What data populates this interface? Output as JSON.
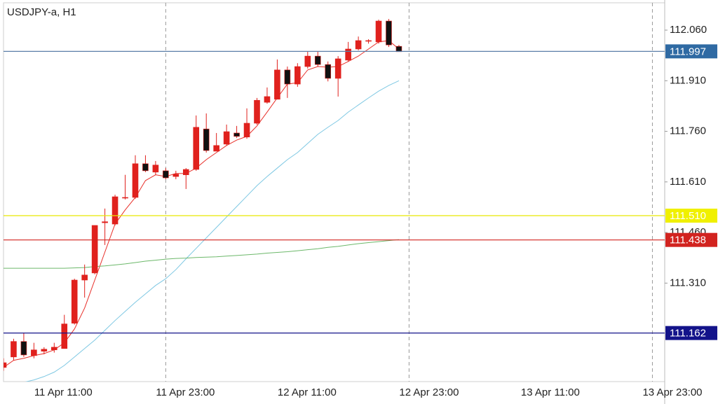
{
  "chart_data": {
    "type": "candlestick",
    "title": "USDJPY-a, H1",
    "ylim": [
      111.018,
      112.141
    ],
    "yticks": [
      {
        "value": 112.06,
        "label": "112.060"
      },
      {
        "value": 111.91,
        "label": "111.910"
      },
      {
        "value": 111.76,
        "label": "111.760"
      },
      {
        "value": 111.61,
        "label": "111.610"
      },
      {
        "value": 111.46,
        "label": "111.460"
      },
      {
        "value": 111.31,
        "label": "111.310"
      }
    ],
    "x_labels": [
      "11 Apr 11:00",
      "11 Apr 23:00",
      "12 Apr 11:00",
      "12 Apr 23:00",
      "13 Apr 11:00",
      "13 Apr 23:00"
    ],
    "up_color": "#e0211d",
    "down_color": "#111111",
    "open": [
      111.06,
      111.091,
      111.137,
      111.095,
      111.108,
      111.112,
      111.116,
      111.191,
      111.319,
      111.34,
      111.489,
      111.485,
      111.562,
      111.564,
      111.664,
      111.639,
      111.643,
      111.626,
      111.631,
      111.647,
      111.767,
      111.701,
      111.722,
      111.755,
      111.743,
      111.784,
      111.846,
      111.855,
      111.942,
      111.9,
      111.952,
      111.983,
      111.958,
      111.917,
      111.971,
      112.004,
      112.027,
      112.025,
      112.087,
      112.012
    ],
    "high": [
      111.087,
      111.145,
      111.162,
      111.133,
      111.12,
      111.133,
      111.216,
      111.323,
      111.365,
      111.481,
      111.531,
      111.572,
      111.631,
      111.689,
      111.689,
      111.672,
      111.651,
      111.643,
      111.651,
      111.807,
      111.813,
      111.755,
      111.78,
      111.776,
      111.828,
      111.859,
      111.89,
      111.973,
      111.952,
      111.962,
      111.996,
      111.996,
      111.967,
      111.983,
      112.025,
      112.041,
      112.033,
      112.091,
      112.093,
      112.016
    ],
    "low": [
      111.05,
      111.081,
      111.091,
      111.087,
      111.099,
      111.104,
      111.116,
      111.187,
      111.267,
      111.336,
      111.423,
      111.481,
      111.558,
      111.56,
      111.639,
      111.63,
      111.618,
      111.618,
      111.589,
      111.643,
      111.697,
      111.701,
      111.718,
      111.74,
      111.738,
      111.78,
      111.842,
      111.855,
      111.859,
      111.892,
      111.946,
      111.952,
      111.908,
      111.863,
      111.967,
      112.0,
      112.02,
      112.02,
      112.01,
      111.996
    ],
    "close": [
      111.074,
      111.137,
      111.097,
      111.112,
      111.114,
      111.12,
      111.189,
      111.319,
      111.334,
      111.481,
      111.492,
      111.566,
      111.564,
      111.664,
      111.643,
      111.66,
      111.622,
      111.633,
      111.647,
      111.772,
      111.703,
      111.718,
      111.759,
      111.745,
      111.784,
      111.852,
      111.863,
      111.942,
      111.9,
      111.952,
      111.983,
      111.958,
      111.917,
      111.975,
      112.004,
      112.029,
      112.029,
      112.087,
      112.016,
      111.996
    ],
    "series": [
      {
        "color": "#e8302a",
        "values": [
          111.06,
          111.081,
          111.087,
          111.095,
          111.101,
          111.112,
          111.133,
          111.174,
          111.236,
          111.319,
          111.402,
          111.485,
          111.527,
          111.564,
          111.614,
          111.631,
          111.626,
          111.635,
          111.635,
          111.651,
          111.676,
          111.697,
          111.718,
          111.734,
          111.745,
          111.776,
          111.817,
          111.859,
          111.9,
          111.904,
          111.942,
          111.952,
          111.95,
          111.952,
          111.967,
          111.983,
          112.004,
          112.025,
          112.029,
          112.004
        ]
      },
      {
        "color": "#7ec8e3",
        "values": [
          111.014,
          111.012,
          111.016,
          111.023,
          111.033,
          111.046,
          111.066,
          111.091,
          111.116,
          111.141,
          111.17,
          111.199,
          111.226,
          111.253,
          111.278,
          111.303,
          111.323,
          111.35,
          111.382,
          111.413,
          111.444,
          111.475,
          111.506,
          111.537,
          111.568,
          111.599,
          111.626,
          111.651,
          111.676,
          111.697,
          111.724,
          111.751,
          111.772,
          111.792,
          111.817,
          111.838,
          111.859,
          111.879,
          111.896,
          111.91
        ]
      },
      {
        "color": "#6cb86a",
        "values": [
          111.354,
          111.354,
          111.354,
          111.354,
          111.354,
          111.354,
          111.354,
          111.355,
          111.356,
          111.359,
          111.361,
          111.364,
          111.367,
          111.371,
          111.375,
          111.378,
          111.381,
          111.383,
          111.384,
          111.386,
          111.387,
          111.388,
          111.39,
          111.392,
          111.394,
          111.396,
          111.399,
          111.401,
          111.403,
          111.406,
          111.409,
          111.412,
          111.416,
          111.419,
          111.423,
          111.427,
          111.43,
          111.433,
          111.436,
          111.439
        ]
      }
    ],
    "hlines": [
      {
        "value": 111.997,
        "value_label": "111.997",
        "color": "#5b7fa8",
        "label_color": "#2f6aa3"
      },
      {
        "value": 111.51,
        "value_label": "111.510",
        "color": "#e8e800",
        "label_color": "#f0f000"
      },
      {
        "value": 111.438,
        "value_label": "111.438",
        "color": "#d2231f",
        "label_color": "#d2231f"
      },
      {
        "value": 111.162,
        "value_label": "111.162",
        "color": "#13138a",
        "label_color": "#13138a"
      }
    ]
  }
}
